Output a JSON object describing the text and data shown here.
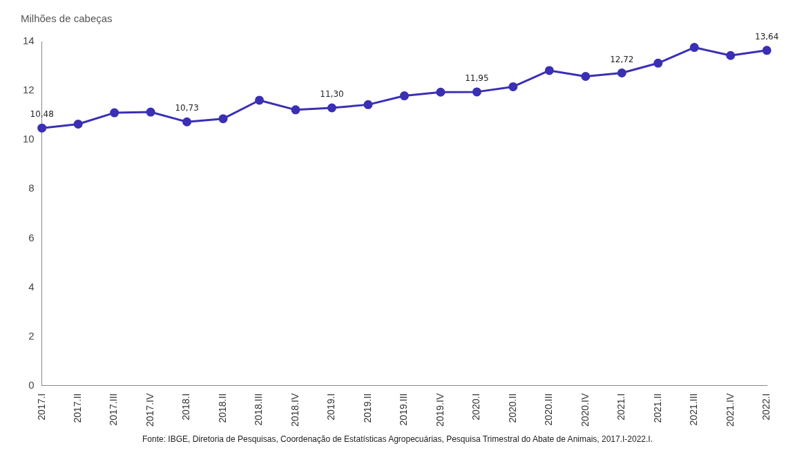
{
  "chart_data": {
    "type": "line",
    "ylabel": "Milhões de cabeças",
    "categories": [
      "2017.I",
      "2017.II",
      "2017.III",
      "2017.IV",
      "2018.I",
      "2018.II",
      "2018.III",
      "2018.IV",
      "2019.I",
      "2019.II",
      "2019.III",
      "2019.IV",
      "2020.I",
      "2020.II",
      "2020.III",
      "2020.IV",
      "2021.I",
      "2021.II",
      "2021.III",
      "2021.IV",
      "2022.I"
    ],
    "series": [
      {
        "color": "#3a2fb5",
        "values": [
          10.48,
          10.64,
          11.1,
          11.13,
          10.73,
          10.86,
          11.61,
          11.22,
          11.3,
          11.43,
          11.79,
          11.94,
          11.95,
          12.16,
          12.82,
          12.58,
          12.72,
          13.12,
          13.76,
          13.43,
          13.64
        ],
        "value_labels": [
          "10,48",
          null,
          null,
          null,
          "10,73",
          null,
          null,
          null,
          "11,30",
          null,
          null,
          null,
          "11,95",
          null,
          null,
          null,
          "12,72",
          null,
          null,
          null,
          "13,64"
        ]
      }
    ],
    "ylim": [
      0,
      14
    ],
    "yticks": [
      0,
      2,
      4,
      6,
      8,
      10,
      12,
      14
    ],
    "grid": false,
    "legend": false,
    "marker": "circle",
    "line_style": "solid",
    "annotations": [
      "Fonte: IBGE, Diretoria de Pesquisas, Coordenação de Estatísticas Agropecuárias, Pesquisa Trimestral do Abate de Animais, 2017.I-2022.I."
    ]
  }
}
